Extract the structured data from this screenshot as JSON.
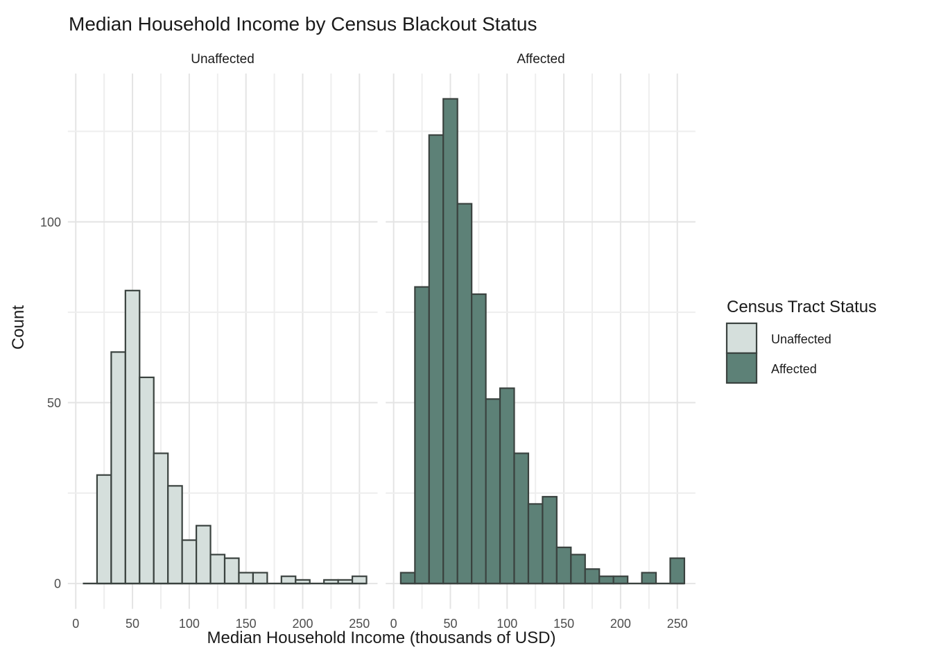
{
  "title": "Median Household Income by Census Blackout Status",
  "facets": {
    "left": "Unaffected",
    "right": "Affected"
  },
  "x_axis": {
    "label": "Median Household Income (thousands of USD)",
    "ticks": [
      0,
      50,
      100,
      150,
      200,
      250
    ]
  },
  "y_axis": {
    "label": "Count",
    "ticks": [
      0,
      50,
      100
    ]
  },
  "legend": {
    "title": "Census Tract Status",
    "entries": [
      "Unaffected",
      "Affected"
    ]
  },
  "colors": {
    "bar_outline": "#3a423f",
    "gridline_major": "#e4e4e4",
    "gridline_minor": "#eeeeee",
    "tick_text": "#4d4d4d",
    "title_text": "#1a1a1a",
    "background": "#ffffff"
  },
  "chart_data": {
    "type": "bar",
    "subtype": "faceted-histogram",
    "title": "Median Household Income by Census Blackout Status",
    "xlabel": "Median Household Income (thousands of USD)",
    "ylabel": "Count",
    "facet_titles": [
      "Unaffected",
      "Affected"
    ],
    "legend_title": "Census Tract Status",
    "legend_position": "right",
    "grid": "on",
    "bin_width": 12.5,
    "bin_centers": [
      12.5,
      25,
      37.5,
      50,
      62.5,
      75,
      87.5,
      100,
      112.5,
      125,
      137.5,
      150,
      162.5,
      175,
      187.5,
      200,
      212.5,
      225,
      237.5,
      250
    ],
    "series": [
      {
        "name": "Unaffected",
        "facet": "Unaffected",
        "fill": "#d5dfdc",
        "counts": [
          0,
          30,
          64,
          81,
          57,
          36,
          27,
          12,
          16,
          8,
          7,
          3,
          3,
          0,
          2,
          1,
          0,
          1,
          1,
          2
        ]
      },
      {
        "name": "Affected",
        "facet": "Affected",
        "fill": "#5d8177",
        "counts": [
          3,
          82,
          124,
          134,
          105,
          80,
          51,
          54,
          36,
          22,
          24,
          10,
          8,
          4,
          2,
          2,
          0,
          3,
          0,
          7
        ]
      }
    ],
    "x_ticks": [
      0,
      50,
      100,
      150,
      200,
      250
    ],
    "y_ticks": [
      0,
      50,
      100
    ],
    "xlim": [
      -7,
      266
    ],
    "ylim": [
      -7,
      141
    ]
  }
}
